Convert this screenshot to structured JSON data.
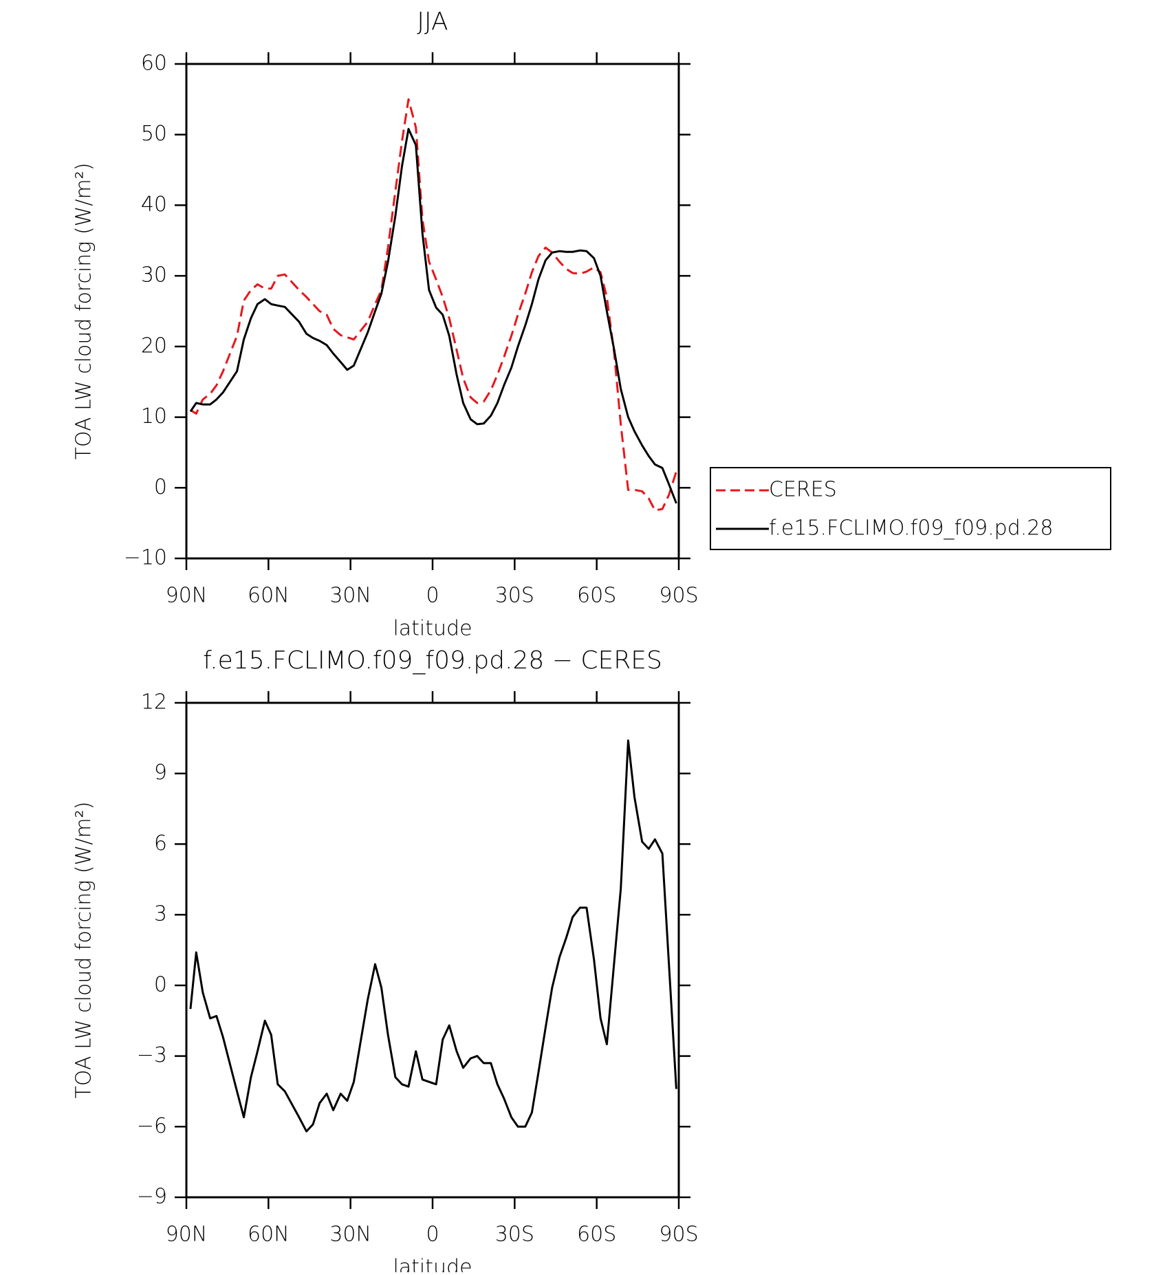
{
  "chart_data": [
    {
      "type": "line",
      "title": "JJA",
      "xlabel": "latitude",
      "ylabel": "TOA LW cloud forcing (W/m²)",
      "xlim": [
        90,
        -90
      ],
      "xticks": [
        {
          "value": 90,
          "label": "90N"
        },
        {
          "value": 60,
          "label": "60N"
        },
        {
          "value": 30,
          "label": "30N"
        },
        0,
        {
          "value": -30,
          "label": "30S"
        },
        {
          "value": -60,
          "label": "60S"
        },
        {
          "value": -90,
          "label": "90S"
        }
      ],
      "ylim": [
        -10,
        60
      ],
      "yticks": [
        {
          "value": -10,
          "label": "−10"
        },
        0,
        10,
        20,
        30,
        40,
        50,
        60
      ],
      "legend": "outside right",
      "x": [
        88.5,
        86.4,
        84,
        81.3,
        79,
        76.6,
        71.5,
        69,
        66.4,
        64,
        61.3,
        59,
        56.6,
        54,
        48.8,
        46.1,
        43.7,
        41.3,
        38.7,
        36.3,
        33.6,
        31.2,
        28.8,
        23.7,
        21,
        18.7,
        16.3,
        13.6,
        11.2,
        8.8,
        6.1,
        3.7,
        1.3,
        -1.3,
        -3.7,
        -6.1,
        -8.8,
        -11.2,
        -13.9,
        -16.3,
        -18.7,
        -21.3,
        -23.7,
        -26.1,
        -28.8,
        -31.2,
        -33.9,
        -36.3,
        -38.7,
        -41.3,
        -43.7,
        -46.4,
        -48.8,
        -51.2,
        -53.9,
        -56.3,
        -59,
        -61.4,
        -63.7,
        -66.4,
        -68.8,
        -71.5,
        -73.8,
        -76.6,
        -79,
        -81.3,
        -84,
        -86.4,
        -89.1
      ],
      "series": [
        {
          "name": "CERES",
          "color": "#e8161b",
          "linestyle": "dashed",
          "values": [
            11.0,
            10.5,
            12.5,
            13.3,
            14.5,
            16.5,
            21.5,
            26.5,
            28,
            28.8,
            28.2,
            28.2,
            30,
            30.2,
            28,
            27,
            26,
            25,
            24.5,
            22.5,
            21.6,
            21.3,
            21,
            23.5,
            26,
            28,
            34,
            42,
            49,
            55,
            51,
            38,
            32,
            29.5,
            27,
            24,
            19.5,
            15.5,
            12.8,
            12,
            12.2,
            13.8,
            16,
            18.5,
            21.5,
            24.5,
            27.5,
            30.5,
            32.8,
            34,
            33.3,
            32,
            31,
            30.4,
            30.3,
            30.6,
            31.2,
            30.5,
            27,
            19,
            9,
            -0.3,
            -0.3,
            -0.5,
            -1.5,
            -3.2,
            -3,
            -1,
            2.3
          ]
        },
        {
          "name": "f.e15.FCLIMO.f09_f09.pd.28",
          "color": "#000000",
          "linestyle": "solid",
          "values": [
            10.8,
            12.0,
            11.8,
            11.8,
            12.5,
            13.5,
            16.5,
            21,
            24,
            26,
            26.7,
            26,
            25.8,
            25.6,
            23.5,
            21.8,
            21.2,
            20.8,
            20.2,
            19,
            17.8,
            16.7,
            17.3,
            22,
            25,
            27.5,
            32,
            38.5,
            45.5,
            50.8,
            48.5,
            36,
            28,
            25.5,
            24.5,
            21.5,
            16,
            12,
            9.7,
            9,
            9.1,
            10.2,
            12,
            14.5,
            17,
            20,
            23,
            26,
            29.5,
            32.2,
            33.3,
            33.5,
            33.4,
            33.4,
            33.6,
            33.5,
            32.5,
            30,
            25,
            19.5,
            14,
            10,
            8,
            6,
            4.5,
            3.3,
            2.8,
            0.5,
            -2.2
          ]
        }
      ]
    },
    {
      "type": "line",
      "title": "f.e15.FCLIMO.f09_f09.pd.28 − CERES",
      "xlabel": "latitude",
      "ylabel": "TOA LW cloud forcing (W/m²)",
      "xlim": [
        90,
        -90
      ],
      "xticks": [
        {
          "value": 90,
          "label": "90N"
        },
        {
          "value": 60,
          "label": "60N"
        },
        {
          "value": 30,
          "label": "30N"
        },
        0,
        {
          "value": -30,
          "label": "30S"
        },
        {
          "value": -60,
          "label": "60S"
        },
        {
          "value": -90,
          "label": "90S"
        }
      ],
      "ylim": [
        -9,
        12
      ],
      "yticks": [
        {
          "value": -9,
          "label": "−9"
        },
        {
          "value": -6,
          "label": "−6"
        },
        {
          "value": -3,
          "label": "−3"
        },
        0,
        3,
        6,
        9,
        12
      ],
      "x": [
        88.5,
        86.4,
        84,
        81.3,
        79,
        76.6,
        71.5,
        69,
        66.4,
        64,
        61.3,
        59,
        56.6,
        54,
        48.8,
        46.1,
        43.7,
        41.3,
        38.7,
        36.3,
        33.6,
        31.2,
        28.8,
        23.7,
        21,
        18.7,
        16.3,
        13.6,
        11.2,
        8.8,
        6.1,
        3.7,
        -1.3,
        -3.7,
        -6.1,
        -8.8,
        -11.2,
        -13.9,
        -16.3,
        -18.7,
        -21.3,
        -23.7,
        -26.1,
        -28.8,
        -31.2,
        -33.9,
        -36.3,
        -38.7,
        -41.3,
        -43.7,
        -46.4,
        -48.8,
        -51.2,
        -53.9,
        -56.3,
        -59,
        -61.4,
        -63.7,
        -66.4,
        -68.8,
        -71.5,
        -73.8,
        -76.6,
        -79,
        -81.3,
        -84,
        -86.4,
        -89.1
      ],
      "series": [
        {
          "color": "#000000",
          "linestyle": "solid",
          "values": [
            -1.0,
            1.4,
            -0.3,
            -1.4,
            -1.3,
            -2.2,
            -4.5,
            -5.6,
            -3.9,
            -2.8,
            -1.5,
            -2.1,
            -4.2,
            -4.5,
            -5.6,
            -6.2,
            -5.9,
            -5.0,
            -4.6,
            -5.3,
            -4.6,
            -4.9,
            -4.1,
            -0.6,
            0.9,
            -0.1,
            -2.1,
            -3.9,
            -4.2,
            -4.3,
            -2.8,
            -4.0,
            -4.2,
            -2.3,
            -1.7,
            -2.8,
            -3.5,
            -3.1,
            -3.0,
            -3.3,
            -3.3,
            -4.2,
            -4.8,
            -5.6,
            -6.0,
            -6.0,
            -5.4,
            -3.7,
            -1.8,
            -0.1,
            1.2,
            2.0,
            2.9,
            3.3,
            3.3,
            1.1,
            -1.4,
            -2.5,
            1.0,
            4.1,
            10.4,
            8.0,
            6.1,
            5.8,
            6.2,
            5.6,
            0.9,
            -4.4
          ]
        }
      ]
    }
  ]
}
